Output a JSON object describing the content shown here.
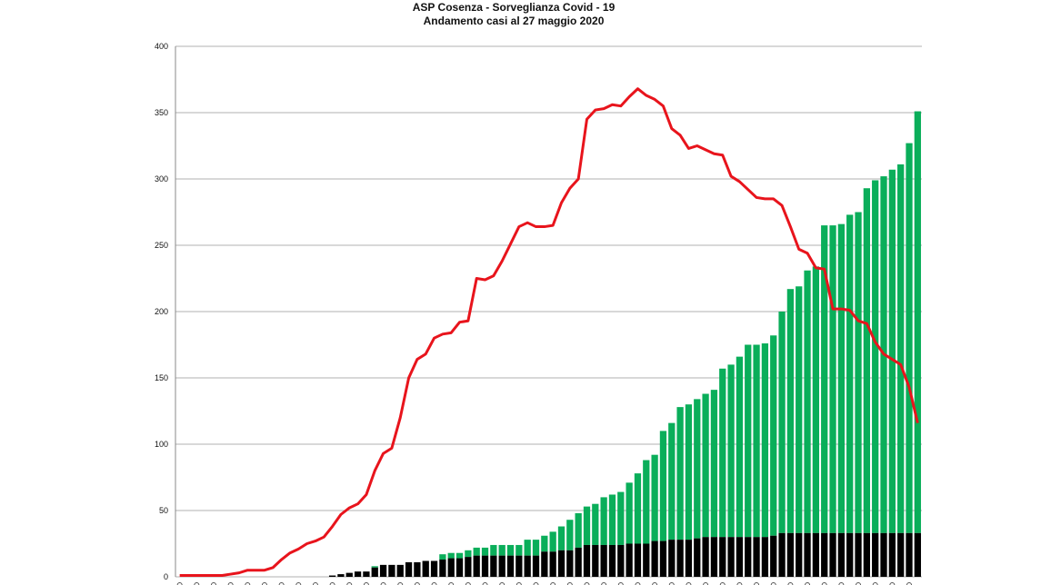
{
  "chart_data": {
    "type": "bar",
    "title": "ASP Cosenza - Sorveglianza Covid - 19",
    "subtitle": "Andamento casi al  27 maggio 2020",
    "xlabel": "",
    "ylabel": "",
    "ylim": [
      0,
      400
    ],
    "yticks": [
      "0",
      "50",
      "100",
      "150",
      "200",
      "250",
      "300",
      "350",
      "400"
    ],
    "grid": true,
    "legend": "none",
    "colors": {
      "black_bars": "#000000",
      "green_bars": "#0aae5a",
      "line": "#e8141c",
      "grid": "#b0b0b0"
    },
    "stacked_bars": {
      "black": [
        0,
        0,
        0,
        0,
        0,
        0,
        0,
        0,
        0,
        0,
        0,
        0,
        0,
        0,
        0,
        0,
        0,
        0,
        1,
        2,
        3,
        4,
        4,
        7,
        9,
        9,
        9,
        11,
        11,
        12,
        12,
        13,
        14,
        14,
        15,
        16,
        16,
        16,
        16,
        16,
        16,
        16,
        16,
        19,
        19,
        20,
        20,
        22,
        24,
        24,
        24,
        24,
        24,
        25,
        25,
        25,
        27,
        27,
        28,
        28,
        28,
        29,
        30,
        30,
        30,
        30,
        30,
        30,
        30,
        30,
        31,
        33,
        33,
        33,
        33,
        33,
        33,
        33,
        33,
        33,
        33,
        33,
        33,
        33,
        33,
        33,
        33,
        33
      ],
      "total": [
        0,
        0,
        0,
        0,
        0,
        0,
        0,
        0,
        0,
        0,
        0,
        0,
        0,
        0,
        0,
        0,
        0,
        0,
        1,
        2,
        3,
        4,
        4,
        8,
        9,
        9,
        9,
        11,
        11,
        12,
        12,
        17,
        18,
        18,
        20,
        22,
        22,
        24,
        24,
        24,
        24,
        28,
        28,
        31,
        34,
        38,
        43,
        48,
        53,
        55,
        60,
        62,
        64,
        71,
        78,
        88,
        92,
        110,
        116,
        128,
        130,
        134,
        138,
        141,
        157,
        160,
        166,
        175,
        175,
        176,
        182,
        200,
        217,
        219,
        231,
        234,
        265,
        265,
        266,
        273,
        275,
        293,
        299,
        302,
        307,
        311,
        327,
        351
      ]
    },
    "line": {
      "values": [
        1,
        1,
        1,
        1,
        1,
        1,
        2,
        3,
        5,
        5,
        5,
        7,
        13,
        18,
        21,
        25,
        27,
        30,
        38,
        47,
        52,
        55,
        62,
        80,
        93,
        97,
        120,
        150,
        164,
        168,
        180,
        183,
        184,
        192,
        193,
        225,
        224,
        227,
        238,
        251,
        264,
        267,
        264,
        264,
        265,
        282,
        293,
        300,
        345,
        352,
        353,
        356,
        355,
        362,
        368,
        363,
        360,
        355,
        338,
        333,
        323,
        325,
        322,
        319,
        318,
        302,
        298,
        292,
        286,
        285,
        285,
        280,
        264,
        247,
        244,
        233,
        232,
        202,
        202,
        201,
        193,
        191,
        177,
        168,
        164,
        160,
        143,
        116
      ]
    }
  }
}
